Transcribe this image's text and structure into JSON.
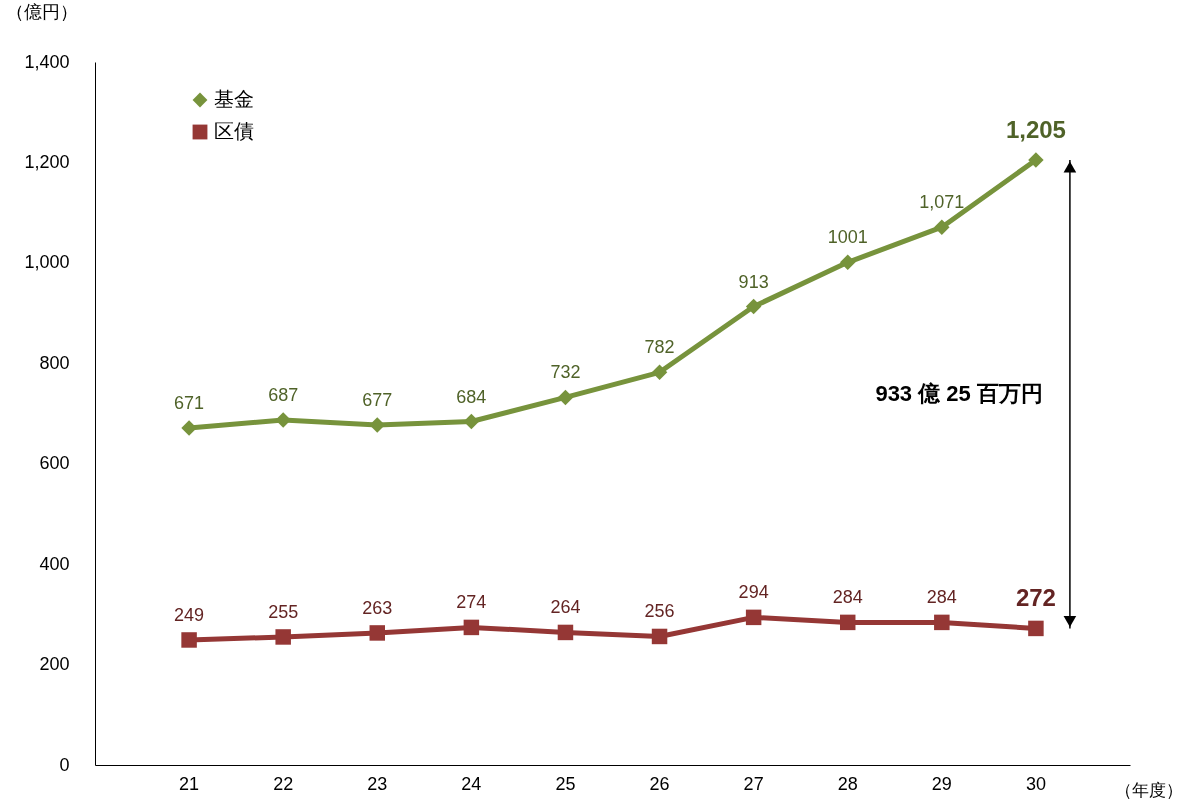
{
  "chart_data": {
    "type": "line",
    "categories": [
      "21",
      "22",
      "23",
      "24",
      "25",
      "26",
      "27",
      "28",
      "29",
      "30"
    ],
    "series": [
      {
        "name": "基金",
        "color": "#77933c",
        "marker": "diamond",
        "values": [
          671,
          687,
          677,
          684,
          732,
          782,
          913,
          1001,
          1071,
          1205
        ],
        "value_labels": [
          "671",
          "687",
          "677",
          "684",
          "732",
          "782",
          "913",
          "1001",
          "1,071",
          "1,205"
        ]
      },
      {
        "name": "区債",
        "color": "#953735",
        "marker": "square",
        "values": [
          249,
          255,
          263,
          274,
          264,
          256,
          294,
          284,
          284,
          272
        ],
        "value_labels": [
          "249",
          "255",
          "263",
          "274",
          "264",
          "256",
          "294",
          "284",
          "284",
          "272"
        ]
      }
    ],
    "ylabel": "（億円）",
    "xlabel": "（年度）",
    "ylim": [
      0,
      1400
    ],
    "yticks": [
      0,
      200,
      400,
      600,
      800,
      {
        "value": 1000,
        "label": "1,000"
      },
      {
        "value": 1200,
        "label": "1,200"
      },
      {
        "value": 1400,
        "label": "1,400"
      }
    ],
    "annotations": [
      "933 億 25 百万円"
    ],
    "legend": "top left",
    "grid": false,
    "line_style": "solid"
  }
}
